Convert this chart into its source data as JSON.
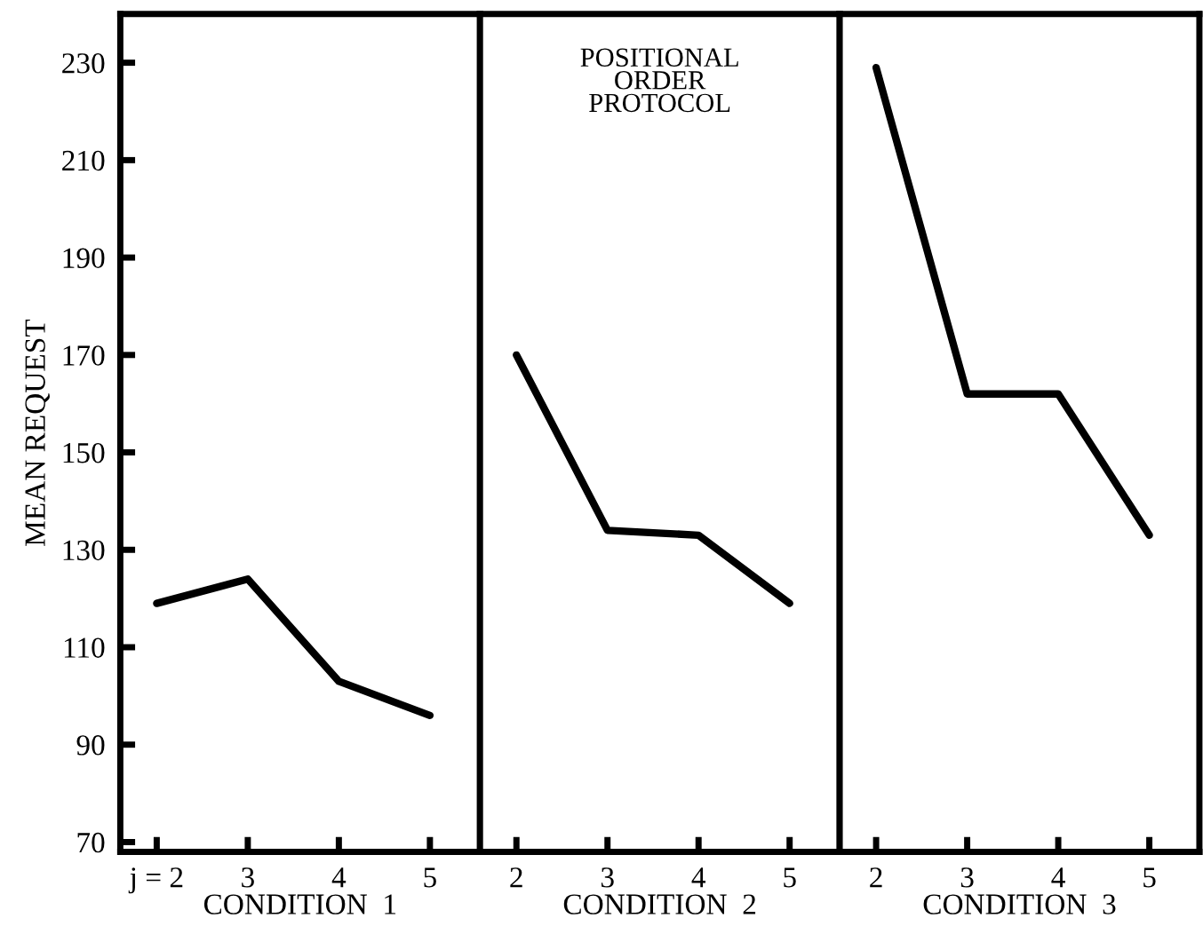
{
  "chart_data": [
    {
      "type": "line",
      "categories": [
        "j = 2",
        "3",
        "4",
        "5"
      ],
      "values": [
        119,
        124,
        103,
        96
      ],
      "color": "#000000",
      "xlabel": "CONDITION  1",
      "ylabel": "MEAN REQUEST",
      "ylim": [
        68,
        240
      ],
      "yticks": [
        70,
        90,
        110,
        130,
        150,
        170,
        190,
        210,
        230
      ],
      "grid": false,
      "legend": false,
      "marker": "none",
      "line_style": "solid"
    },
    {
      "type": "line",
      "categories": [
        "2",
        "3",
        "4",
        "5"
      ],
      "values": [
        170,
        134,
        133,
        119
      ],
      "color": "#000000",
      "xlabel": "CONDITION  2",
      "ylim": [
        68,
        240
      ],
      "tick_labels": "x",
      "annotations": [
        "POSITIONAL\nORDER\nPROTOCOL"
      ],
      "grid": false,
      "legend": false,
      "marker": "none",
      "line_style": "solid"
    },
    {
      "type": "line",
      "categories": [
        "2",
        "3",
        "4",
        "5"
      ],
      "values": [
        229,
        162,
        162,
        133
      ],
      "color": "#000000",
      "xlabel": "CONDITION  3",
      "ylim": [
        68,
        240
      ],
      "tick_labels": "x",
      "grid": false,
      "legend": false,
      "marker": "none",
      "line_style": "solid"
    }
  ]
}
